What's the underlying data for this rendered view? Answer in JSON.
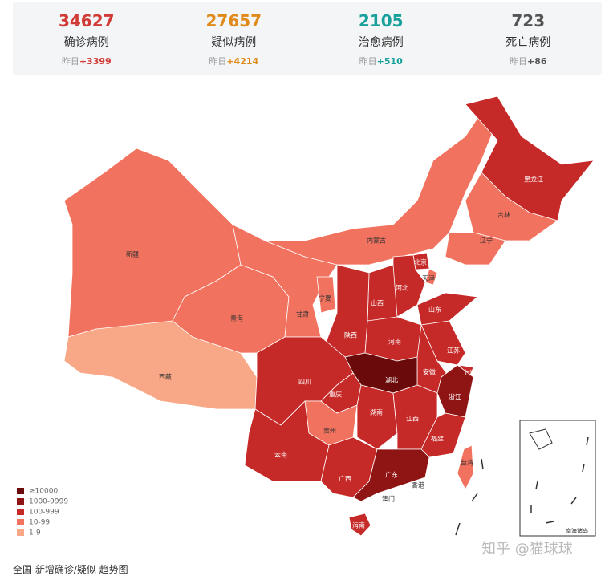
{
  "stats": [
    {
      "value": 34627,
      "label": "确诊病例",
      "yesterday_label": "昨日",
      "delta": "+3399",
      "color": "#d13b36"
    },
    {
      "value": 27657,
      "label": "疑似病例",
      "yesterday_label": "昨日",
      "delta": "+4214",
      "color": "#e08a1a"
    },
    {
      "value": 2105,
      "label": "治愈病例",
      "yesterday_label": "昨日",
      "delta": "+510",
      "color": "#17a19a"
    },
    {
      "value": 723,
      "label": "死亡病例",
      "yesterday_label": "昨日",
      "delta": "+86",
      "color": "#555555"
    }
  ],
  "map": {
    "provinces": [
      {
        "name": "新疆",
        "color": "#f1725e"
      },
      {
        "name": "西藏",
        "color": "#f8a886"
      },
      {
        "name": "青海",
        "color": "#f1725e"
      },
      {
        "name": "甘肃",
        "color": "#f1725e"
      },
      {
        "name": "宁夏",
        "color": "#f1725e"
      },
      {
        "name": "内蒙古",
        "color": "#f1725e"
      },
      {
        "name": "黑龙江",
        "color": "#c62a28"
      },
      {
        "name": "吉林",
        "color": "#f1725e"
      },
      {
        "name": "辽宁",
        "color": "#f1725e"
      },
      {
        "name": "北京",
        "color": "#c62a28"
      },
      {
        "name": "天津",
        "color": "#f1725e"
      },
      {
        "name": "河北",
        "color": "#c62a28"
      },
      {
        "name": "山西",
        "color": "#c62a28"
      },
      {
        "name": "山东",
        "color": "#c62a28"
      },
      {
        "name": "陕西",
        "color": "#c62a28"
      },
      {
        "name": "河南",
        "color": "#c62a28"
      },
      {
        "name": "江苏",
        "color": "#c62a28"
      },
      {
        "name": "上海",
        "color": "#c62a28"
      },
      {
        "name": "安徽",
        "color": "#c62a28"
      },
      {
        "name": "湖北",
        "color": "#6b0a0a"
      },
      {
        "name": "浙江",
        "color": "#8f1414"
      },
      {
        "name": "四川",
        "color": "#c62a28"
      },
      {
        "name": "重庆",
        "color": "#c62a28"
      },
      {
        "name": "贵州",
        "color": "#f1725e"
      },
      {
        "name": "湖南",
        "color": "#c62a28"
      },
      {
        "name": "江西",
        "color": "#c62a28"
      },
      {
        "name": "福建",
        "color": "#c62a28"
      },
      {
        "name": "云南",
        "color": "#c62a28"
      },
      {
        "name": "广西",
        "color": "#c62a28"
      },
      {
        "name": "广东",
        "color": "#8f1414"
      },
      {
        "name": "台湾",
        "color": "#f1725e"
      },
      {
        "name": "海南",
        "color": "#c62a28"
      },
      {
        "name": "香港"
      },
      {
        "name": "澳门"
      }
    ],
    "inset_label": "南海诸岛",
    "legend": [
      {
        "label": "≥10000",
        "color": "#6b0a0a"
      },
      {
        "label": "1000-9999",
        "color": "#8f1414"
      },
      {
        "label": "100-999",
        "color": "#c62a28"
      },
      {
        "label": "10-99",
        "color": "#f1725e"
      },
      {
        "label": "1-9",
        "color": "#f8a886"
      }
    ]
  },
  "footer": "全国 新增确诊/疑似 趋势图",
  "watermark": "知乎 @猫球球"
}
